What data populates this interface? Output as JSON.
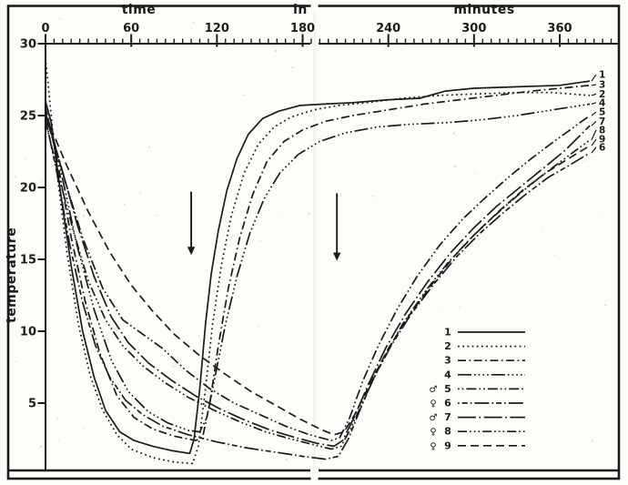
{
  "figure": {
    "background": "#fdfdfa",
    "ink": "#1b1b1b"
  },
  "icons": {
    "male": "♂",
    "female": "♀"
  },
  "chart_data": {
    "type": "line",
    "title": "",
    "xlabel": "time in minutes",
    "xlabel_words": [
      "time",
      "in",
      "minutes"
    ],
    "ylabel": "temperature",
    "x_ticks": [
      0,
      60,
      120,
      180,
      240,
      300,
      360
    ],
    "x_minor_step": 6,
    "xlim": [
      0,
      396
    ],
    "y_ticks": [
      30,
      25,
      20,
      15,
      10,
      5
    ],
    "ylim": [
      0,
      30
    ],
    "grid": false,
    "legend_position": "lower right",
    "arrows": [
      {
        "t": 102,
        "temp_from": 19.7,
        "temp_to": 15.3
      },
      {
        "t": 204,
        "temp_from": 19.6,
        "temp_to": 14.9
      }
    ],
    "end_labels": [
      {
        "label": "1",
        "temp": 27.85
      },
      {
        "label": "3",
        "temp": 27.15
      },
      {
        "label": "2",
        "temp": 26.5
      },
      {
        "label": "4",
        "temp": 25.9
      },
      {
        "label": "5",
        "temp": 25.25
      },
      {
        "label": "7",
        "temp": 24.6
      },
      {
        "label": "8",
        "temp": 24.0
      },
      {
        "label": "9",
        "temp": 23.35
      },
      {
        "label": "6",
        "temp": 22.8
      }
    ],
    "series": [
      {
        "label": "1",
        "sex": "",
        "pattern": "solid",
        "points": [
          [
            0,
            26
          ],
          [
            4,
            24.5
          ],
          [
            10,
            20
          ],
          [
            18,
            14.5
          ],
          [
            26,
            10
          ],
          [
            34,
            6.8
          ],
          [
            42,
            4.5
          ],
          [
            52,
            3
          ],
          [
            62,
            2.4
          ],
          [
            75,
            2
          ],
          [
            88,
            1.7
          ],
          [
            101,
            1.5
          ],
          [
            104,
            2.5
          ],
          [
            108,
            6
          ],
          [
            112,
            10.5
          ],
          [
            116,
            14
          ],
          [
            121,
            17
          ],
          [
            127,
            19.8
          ],
          [
            134,
            22
          ],
          [
            142,
            23.7
          ],
          [
            152,
            24.8
          ],
          [
            163,
            25.3
          ],
          [
            178,
            25.7
          ],
          [
            195,
            25.8
          ],
          [
            215,
            25.9
          ],
          [
            240,
            26.1
          ],
          [
            262,
            26.2
          ],
          [
            280,
            26.7
          ],
          [
            300,
            26.9
          ],
          [
            330,
            27
          ],
          [
            360,
            27.1
          ],
          [
            381,
            27.4
          ]
        ]
      },
      {
        "label": "2",
        "sex": "",
        "pattern": "dotted",
        "points": [
          [
            0,
            29
          ],
          [
            3,
            26
          ],
          [
            8,
            21
          ],
          [
            15,
            15.5
          ],
          [
            23,
            10.5
          ],
          [
            31,
            7
          ],
          [
            40,
            4.5
          ],
          [
            50,
            2.8
          ],
          [
            60,
            1.8
          ],
          [
            75,
            1.2
          ],
          [
            90,
            0.9
          ],
          [
            103,
            0.8
          ],
          [
            107,
            2
          ],
          [
            112,
            6
          ],
          [
            117,
            10.5
          ],
          [
            123,
            14.5
          ],
          [
            130,
            18
          ],
          [
            139,
            21
          ],
          [
            149,
            23
          ],
          [
            160,
            24.2
          ],
          [
            172,
            24.9
          ],
          [
            188,
            25.4
          ],
          [
            205,
            25.7
          ],
          [
            225,
            25.9
          ],
          [
            250,
            26.2
          ],
          [
            275,
            26.4
          ],
          [
            300,
            26.5
          ],
          [
            330,
            26.6
          ],
          [
            355,
            26.6
          ],
          [
            381,
            26.4
          ]
        ]
      },
      {
        "label": "3",
        "sex": "",
        "pattern": "dash-dot",
        "points": [
          [
            0,
            25.6
          ],
          [
            8,
            22
          ],
          [
            18,
            16.5
          ],
          [
            28,
            12
          ],
          [
            38,
            8.5
          ],
          [
            50,
            5.5
          ],
          [
            62,
            4
          ],
          [
            75,
            3.2
          ],
          [
            90,
            2.7
          ],
          [
            105,
            2.4
          ],
          [
            110,
            2.6
          ],
          [
            115,
            5
          ],
          [
            121,
            9
          ],
          [
            128,
            13
          ],
          [
            136,
            16.5
          ],
          [
            145,
            19.5
          ],
          [
            155,
            21.8
          ],
          [
            167,
            23.2
          ],
          [
            180,
            24
          ],
          [
            196,
            24.6
          ],
          [
            215,
            25
          ],
          [
            240,
            25.4
          ],
          [
            265,
            25.8
          ],
          [
            290,
            26.1
          ],
          [
            315,
            26.4
          ],
          [
            340,
            26.7
          ],
          [
            360,
            26.9
          ],
          [
            381,
            27.1
          ]
        ]
      },
      {
        "label": "4",
        "sex": "",
        "pattern": "long-dash-4-dots",
        "points": [
          [
            0,
            25.2
          ],
          [
            10,
            21.5
          ],
          [
            22,
            16
          ],
          [
            34,
            11.5
          ],
          [
            46,
            8
          ],
          [
            58,
            5.8
          ],
          [
            72,
            4.4
          ],
          [
            86,
            3.6
          ],
          [
            100,
            3.1
          ],
          [
            108,
            3
          ],
          [
            113,
            4
          ],
          [
            119,
            7
          ],
          [
            126,
            10.5
          ],
          [
            134,
            13.8
          ],
          [
            143,
            16.8
          ],
          [
            153,
            19.2
          ],
          [
            164,
            21
          ],
          [
            177,
            22.3
          ],
          [
            192,
            23.2
          ],
          [
            210,
            23.8
          ],
          [
            232,
            24.2
          ],
          [
            256,
            24.4
          ],
          [
            280,
            24.5
          ],
          [
            305,
            24.7
          ],
          [
            330,
            25
          ],
          [
            355,
            25.4
          ],
          [
            381,
            25.8
          ]
        ]
      },
      {
        "label": "5",
        "sex": "male",
        "pattern": "dots-dash",
        "points": [
          [
            0,
            25.4
          ],
          [
            12,
            21
          ],
          [
            26,
            16.5
          ],
          [
            40,
            13
          ],
          [
            54,
            10.8
          ],
          [
            68,
            9.8
          ],
          [
            82,
            8.8
          ],
          [
            98,
            7.3
          ],
          [
            115,
            6
          ],
          [
            132,
            5
          ],
          [
            150,
            4.2
          ],
          [
            168,
            3.4
          ],
          [
            185,
            2.8
          ],
          [
            200,
            2.4
          ],
          [
            206,
            2.6
          ],
          [
            213,
            4
          ],
          [
            222,
            6.5
          ],
          [
            233,
            9
          ],
          [
            246,
            11.5
          ],
          [
            260,
            13.8
          ],
          [
            276,
            16
          ],
          [
            292,
            17.8
          ],
          [
            308,
            19.3
          ],
          [
            324,
            20.7
          ],
          [
            340,
            22
          ],
          [
            356,
            23.2
          ],
          [
            370,
            24.2
          ],
          [
            381,
            25
          ]
        ]
      },
      {
        "label": "6",
        "sex": "female",
        "pattern": "dot-dash",
        "points": [
          [
            0,
            24.8
          ],
          [
            8,
            21
          ],
          [
            17,
            16
          ],
          [
            26,
            12
          ],
          [
            35,
            9
          ],
          [
            45,
            6.8
          ],
          [
            56,
            5.2
          ],
          [
            68,
            4.2
          ],
          [
            82,
            3.4
          ],
          [
            100,
            2.8
          ],
          [
            120,
            2.3
          ],
          [
            140,
            1.9
          ],
          [
            160,
            1.6
          ],
          [
            180,
            1.3
          ],
          [
            196,
            1.1
          ],
          [
            205,
            1.3
          ],
          [
            212,
            2.5
          ],
          [
            220,
            4.5
          ],
          [
            230,
            6.8
          ],
          [
            242,
            9
          ],
          [
            256,
            11.2
          ],
          [
            272,
            13.3
          ],
          [
            288,
            15.2
          ],
          [
            304,
            16.8
          ],
          [
            320,
            18.2
          ],
          [
            336,
            19.5
          ],
          [
            352,
            20.7
          ],
          [
            366,
            21.5
          ],
          [
            381,
            22.4
          ]
        ]
      },
      {
        "label": "7",
        "sex": "male",
        "pattern": "long-dash-dot",
        "points": [
          [
            0,
            25
          ],
          [
            10,
            21.8
          ],
          [
            22,
            17.5
          ],
          [
            34,
            13.8
          ],
          [
            46,
            11
          ],
          [
            58,
            9.2
          ],
          [
            72,
            7.8
          ],
          [
            88,
            6.6
          ],
          [
            105,
            5.5
          ],
          [
            122,
            4.6
          ],
          [
            140,
            3.8
          ],
          [
            158,
            3.1
          ],
          [
            175,
            2.6
          ],
          [
            190,
            2.2
          ],
          [
            202,
            2
          ],
          [
            208,
            2.4
          ],
          [
            216,
            4
          ],
          [
            226,
            6.3
          ],
          [
            238,
            8.8
          ],
          [
            252,
            11.2
          ],
          [
            268,
            13.5
          ],
          [
            284,
            15.5
          ],
          [
            300,
            17.2
          ],
          [
            316,
            18.7
          ],
          [
            332,
            20
          ],
          [
            348,
            21.3
          ],
          [
            364,
            22.6
          ],
          [
            381,
            24.3
          ]
        ]
      },
      {
        "label": "8",
        "sex": "female",
        "pattern": "dash-3-dots",
        "points": [
          [
            0,
            24.6
          ],
          [
            10,
            20.5
          ],
          [
            20,
            16.8
          ],
          [
            30,
            13.5
          ],
          [
            42,
            10.8
          ],
          [
            54,
            9
          ],
          [
            68,
            7.6
          ],
          [
            84,
            6.4
          ],
          [
            100,
            5.4
          ],
          [
            118,
            4.5
          ],
          [
            136,
            3.7
          ],
          [
            154,
            3
          ],
          [
            172,
            2.5
          ],
          [
            188,
            2.1
          ],
          [
            200,
            1.8
          ],
          [
            207,
            2
          ],
          [
            214,
            3.3
          ],
          [
            224,
            5.5
          ],
          [
            236,
            8
          ],
          [
            250,
            10.5
          ],
          [
            266,
            12.8
          ],
          [
            282,
            14.8
          ],
          [
            298,
            16.5
          ],
          [
            314,
            18
          ],
          [
            330,
            19.4
          ],
          [
            346,
            20.7
          ],
          [
            362,
            21.9
          ],
          [
            381,
            23.3
          ]
        ]
      },
      {
        "label": "9",
        "sex": "female",
        "pattern": "dashed",
        "points": [
          [
            0,
            25
          ],
          [
            15,
            21.5
          ],
          [
            30,
            18.3
          ],
          [
            45,
            15.5
          ],
          [
            60,
            13.2
          ],
          [
            75,
            11.4
          ],
          [
            90,
            9.8
          ],
          [
            108,
            8.3
          ],
          [
            126,
            7
          ],
          [
            144,
            5.8
          ],
          [
            162,
            4.8
          ],
          [
            178,
            3.9
          ],
          [
            192,
            3.2
          ],
          [
            202,
            2.8
          ],
          [
            209,
            3
          ],
          [
            217,
            4.3
          ],
          [
            228,
            6.5
          ],
          [
            240,
            8.8
          ],
          [
            254,
            11
          ],
          [
            270,
            13.2
          ],
          [
            286,
            15.2
          ],
          [
            302,
            16.9
          ],
          [
            318,
            18.4
          ],
          [
            334,
            19.8
          ],
          [
            350,
            21
          ],
          [
            366,
            22
          ],
          [
            381,
            22.9
          ]
        ]
      }
    ]
  }
}
